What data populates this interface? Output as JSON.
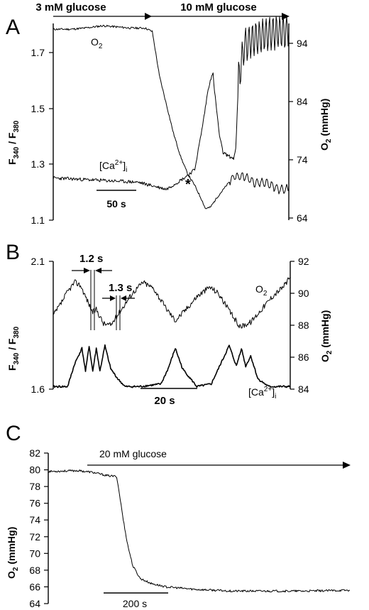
{
  "chart_data": [
    {
      "panel_label": "A",
      "type": "line",
      "annotations": {
        "glucose_low": "3 mM glucose",
        "glucose_high": "10 mM glucose",
        "asterisk": "*",
        "scale_bar": "50 s"
      },
      "y_left": {
        "label_main": "F",
        "label_sub1": "340",
        "label_mid": " / F",
        "label_sub2": "380",
        "ticks": [
          "1.7",
          "1.5",
          "1.3",
          "1.1"
        ],
        "ylim": [
          1.1,
          1.8
        ]
      },
      "y_right": {
        "label_main": "O",
        "label_sub": "2",
        "label_unit": " (mmHg)",
        "ticks": [
          "94",
          "84",
          "74",
          "64"
        ],
        "ylim": [
          64,
          98
        ]
      },
      "series": [
        {
          "name": "O2",
          "name_main": "O",
          "name_sub": "2",
          "axis": "right",
          "points": [
            [
              0,
              97
            ],
            [
              25,
              97
            ],
            [
              45,
              97.2
            ],
            [
              70,
              97.6
            ],
            [
              90,
              97.4
            ],
            [
              110,
              97.2
            ],
            [
              130,
              97.2
            ],
            [
              140,
              96.6
            ],
            [
              150,
              89
            ],
            [
              160,
              84
            ],
            [
              170,
              79
            ],
            [
              180,
              75
            ],
            [
              190,
              72
            ],
            [
              200,
              70
            ],
            [
              210,
              67.5
            ],
            [
              215,
              66
            ],
            [
              222,
              66.2
            ],
            [
              232,
              68
            ],
            [
              245,
              70
            ],
            [
              255,
              71.5
            ],
            [
              270,
              71.6
            ],
            [
              285,
              70.5
            ],
            [
              300,
              70.5
            ],
            [
              320,
              69.3
            ],
            [
              333,
              69.4
            ]
          ]
        },
        {
          "name": "[Ca2+]i",
          "name_main": "[Ca",
          "name_sup": "2+",
          "name_end": "]",
          "name_sub": "i",
          "axis": "left",
          "points": [
            [
              0,
              1.25
            ],
            [
              40,
              1.245
            ],
            [
              80,
              1.24
            ],
            [
              120,
              1.235
            ],
            [
              160,
              1.21
            ],
            [
              185,
              1.25
            ],
            [
              200,
              1.28
            ],
            [
              210,
              1.42
            ],
            [
              215,
              1.5
            ],
            [
              218,
              1.55
            ],
            [
              222,
              1.6
            ],
            [
              226,
              1.62
            ],
            [
              228,
              1.56
            ],
            [
              235,
              1.4
            ],
            [
              240,
              1.34
            ],
            [
              250,
              1.325
            ],
            [
              255,
              1.32
            ],
            [
              258,
              1.35
            ],
            [
              262,
              1.6
            ],
            [
              270,
              1.72
            ],
            [
              280,
              1.74
            ],
            [
              290,
              1.75
            ],
            [
              300,
              1.76
            ],
            [
              310,
              1.77
            ],
            [
              333,
              1.77
            ]
          ]
        }
      ]
    },
    {
      "panel_label": "B",
      "type": "line",
      "annotations": {
        "interval1": "1.2 s",
        "interval2": "1.3 s",
        "scale_bar": "20 s"
      },
      "y_left": {
        "label_main": "F",
        "label_sub1": "340",
        "label_mid": " / F",
        "label_sub2": "380",
        "ticks": [
          "2.1",
          "1.6"
        ],
        "ylim": [
          1.6,
          2.1
        ]
      },
      "y_right": {
        "label_main": "O",
        "label_sub": "2",
        "label_unit": " (mmHg)",
        "ticks": [
          "92",
          "90",
          "88",
          "86",
          "84"
        ],
        "ylim": [
          84,
          92
        ]
      },
      "series": [
        {
          "name": "O2",
          "name_main": "O",
          "name_sub": "2",
          "axis": "right",
          "points": [
            [
              0,
              88.6
            ],
            [
              10,
              89.3
            ],
            [
              20,
              90.1
            ],
            [
              30,
              90.7
            ],
            [
              38,
              90.5
            ],
            [
              45,
              89.8
            ],
            [
              55,
              88.8
            ],
            [
              60,
              89.0
            ],
            [
              70,
              88.1
            ],
            [
              80,
              88.0
            ],
            [
              95,
              89.0
            ],
            [
              110,
              90.0
            ],
            [
              125,
              90.7
            ],
            [
              140,
              90.3
            ],
            [
              155,
              89.2
            ],
            [
              170,
              88.3
            ],
            [
              185,
              89.0
            ],
            [
              200,
              89.8
            ],
            [
              218,
              90.4
            ],
            [
              230,
              90.0
            ],
            [
              245,
              88.9
            ],
            [
              260,
              87.9
            ],
            [
              275,
              88.2
            ],
            [
              290,
              89.0
            ],
            [
              305,
              89.8
            ],
            [
              320,
              90.4
            ],
            [
              330,
              91.0
            ]
          ]
        },
        {
          "name": "[Ca2+]i",
          "name_main": "[Ca",
          "name_sup": "2+",
          "name_end": "]",
          "name_sub": "i",
          "axis": "left",
          "points": [
            [
              0,
              1.61
            ],
            [
              20,
              1.61
            ],
            [
              30,
              1.7
            ],
            [
              40,
              1.76
            ],
            [
              45,
              1.67
            ],
            [
              50,
              1.77
            ],
            [
              55,
              1.67
            ],
            [
              60,
              1.76
            ],
            [
              65,
              1.67
            ],
            [
              72,
              1.77
            ],
            [
              80,
              1.68
            ],
            [
              90,
              1.64
            ],
            [
              100,
              1.61
            ],
            [
              120,
              1.61
            ],
            [
              150,
              1.62
            ],
            [
              160,
              1.68
            ],
            [
              170,
              1.76
            ],
            [
              180,
              1.68
            ],
            [
              200,
              1.61
            ],
            [
              220,
              1.62
            ],
            [
              235,
              1.71
            ],
            [
              245,
              1.77
            ],
            [
              255,
              1.69
            ],
            [
              262,
              1.76
            ],
            [
              268,
              1.69
            ],
            [
              275,
              1.73
            ],
            [
              285,
              1.64
            ],
            [
              300,
              1.61
            ],
            [
              330,
              1.61
            ]
          ]
        }
      ]
    },
    {
      "panel_label": "C",
      "type": "line",
      "annotations": {
        "glucose": "20 mM glucose",
        "scale_bar": "200 s"
      },
      "y_left": {
        "label_main": "O",
        "label_sub": "2",
        "label_unit": " (mmHg)",
        "ticks": [
          "82",
          "80",
          "78",
          "76",
          "74",
          "72",
          "70",
          "68",
          "66",
          "64"
        ],
        "ylim": [
          64,
          82
        ]
      },
      "series": [
        {
          "name": "O2",
          "axis": "left",
          "points": [
            [
              0,
              79.8
            ],
            [
              40,
              79.9
            ],
            [
              60,
              79.7
            ],
            [
              80,
              79.3
            ],
            [
              93,
              79.2
            ],
            [
              97,
              77
            ],
            [
              102,
              74
            ],
            [
              108,
              71
            ],
            [
              115,
              68.5
            ],
            [
              125,
              67
            ],
            [
              140,
              66.4
            ],
            [
              160,
              66.0
            ],
            [
              200,
              65.7
            ],
            [
              250,
              65.5
            ],
            [
              300,
              65.5
            ],
            [
              350,
              65.5
            ],
            [
              410,
              65.6
            ]
          ]
        }
      ]
    }
  ]
}
